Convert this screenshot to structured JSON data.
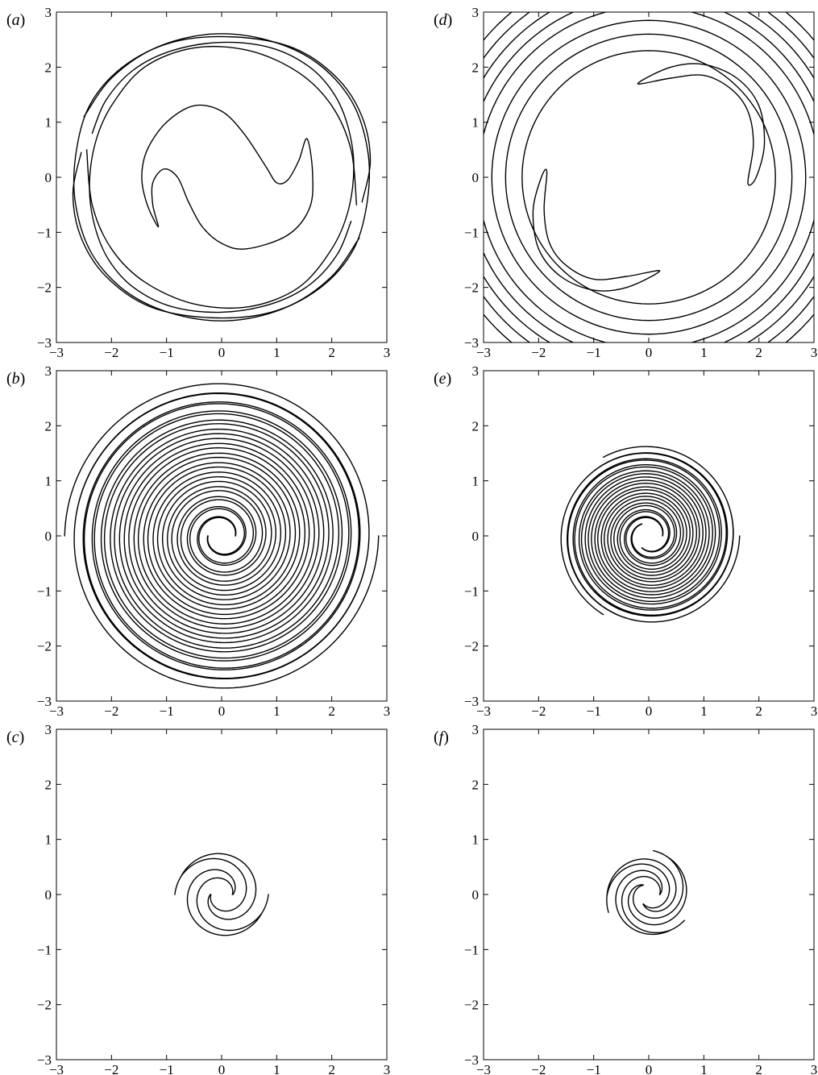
{
  "chart_data": [
    {
      "panel": "(a)",
      "type": "line",
      "title": "",
      "xlabel": "",
      "ylabel": "",
      "xlim": [
        -3,
        3
      ],
      "ylim": [
        -3,
        3
      ],
      "xticks": [
        -3,
        -2,
        -1,
        0,
        1,
        2,
        3
      ],
      "yticks": [
        -3,
        -2,
        -1,
        0,
        1,
        2,
        3
      ],
      "grid": false,
      "legend": "none",
      "description_series": [
        {
          "kind": "closed",
          "points": [
            [
              0.45,
              -1.3
            ],
            [
              1.2,
              -1.05
            ],
            [
              1.6,
              -0.55
            ],
            [
              1.65,
              0.1
            ],
            [
              1.55,
              0.7
            ],
            [
              1.4,
              0.3
            ],
            [
              1.2,
              -0.05
            ],
            [
              1.0,
              -0.1
            ],
            [
              0.8,
              0.2
            ],
            [
              0.4,
              0.8
            ],
            [
              0.0,
              1.2
            ],
            [
              -0.5,
              1.3
            ],
            [
              -1.0,
              1.0
            ],
            [
              -1.35,
              0.5
            ],
            [
              -1.45,
              0.0
            ],
            [
              -1.35,
              -0.5
            ],
            [
              -1.15,
              -0.9
            ],
            [
              -1.25,
              -0.5
            ],
            [
              -1.25,
              -0.1
            ],
            [
              -1.05,
              0.15
            ],
            [
              -0.8,
              0.0
            ],
            [
              -0.6,
              -0.45
            ],
            [
              -0.35,
              -0.9
            ],
            [
              0.0,
              -1.2
            ]
          ]
        },
        {
          "kind": "open",
          "points": [
            [
              -2.45,
              0.5
            ],
            [
              -2.35,
              -0.5
            ],
            [
              -2.0,
              -1.3
            ],
            [
              -1.4,
              -1.9
            ],
            [
              -0.5,
              -2.3
            ],
            [
              0.5,
              -2.35
            ],
            [
              1.4,
              -2.0
            ],
            [
              2.0,
              -1.3
            ],
            [
              2.3,
              -0.6
            ],
            [
              2.4,
              0.2
            ],
            [
              2.3,
              0.9
            ],
            [
              2.05,
              1.5
            ],
            [
              1.6,
              2.0
            ],
            [
              0.9,
              2.35
            ],
            [
              0.0,
              2.45
            ],
            [
              -0.9,
              2.3
            ],
            [
              -1.6,
              1.95
            ],
            [
              -2.1,
              1.4
            ],
            [
              -2.35,
              0.8
            ]
          ]
        },
        {
          "kind": "open",
          "points": [
            [
              2.45,
              -0.5
            ],
            [
              2.35,
              0.5
            ],
            [
              2.0,
              1.3
            ],
            [
              1.4,
              1.9
            ],
            [
              0.5,
              2.3
            ],
            [
              -0.5,
              2.35
            ],
            [
              -1.4,
              2.0
            ],
            [
              -2.0,
              1.3
            ],
            [
              -2.3,
              0.6
            ],
            [
              -2.4,
              -0.2
            ],
            [
              -2.3,
              -0.9
            ],
            [
              -2.05,
              -1.5
            ],
            [
              -1.6,
              -2.0
            ],
            [
              -0.9,
              -2.35
            ],
            [
              0.0,
              -2.45
            ],
            [
              0.9,
              -2.3
            ],
            [
              1.6,
              -1.95
            ],
            [
              2.1,
              -1.4
            ],
            [
              2.35,
              -0.8
            ]
          ]
        },
        {
          "kind": "open",
          "points": [
            [
              -2.55,
              0.45
            ],
            [
              -2.7,
              -0.3
            ],
            [
              -2.55,
              -1.1
            ],
            [
              -2.1,
              -1.8
            ],
            [
              -1.3,
              -2.35
            ],
            [
              -0.2,
              -2.55
            ],
            [
              0.9,
              -2.45
            ],
            [
              1.8,
              -2.0
            ],
            [
              2.4,
              -1.3
            ],
            [
              2.65,
              -0.4
            ],
            [
              2.65,
              0.5
            ],
            [
              2.35,
              1.4
            ],
            [
              1.7,
              2.1
            ],
            [
              0.8,
              2.5
            ],
            [
              -0.2,
              2.6
            ],
            [
              -1.2,
              2.35
            ],
            [
              -2.0,
              1.8
            ],
            [
              -2.5,
              1.1
            ]
          ]
        },
        {
          "kind": "open",
          "points": [
            [
              2.55,
              -0.45
            ],
            [
              2.7,
              0.3
            ],
            [
              2.55,
              1.1
            ],
            [
              2.1,
              1.8
            ],
            [
              1.3,
              2.35
            ],
            [
              0.2,
              2.55
            ],
            [
              -0.9,
              2.45
            ],
            [
              -1.8,
              2.0
            ],
            [
              -2.4,
              1.3
            ],
            [
              -2.65,
              0.4
            ],
            [
              -2.65,
              -0.5
            ],
            [
              -2.35,
              -1.4
            ],
            [
              -1.7,
              -2.1
            ],
            [
              -0.8,
              -2.5
            ],
            [
              0.2,
              -2.6
            ],
            [
              1.2,
              -2.35
            ],
            [
              2.0,
              -1.8
            ],
            [
              2.5,
              -1.1
            ]
          ]
        }
      ]
    },
    {
      "panel": "(b)",
      "type": "line",
      "title": "",
      "xlabel": "",
      "ylabel": "",
      "xlim": [
        -3,
        3
      ],
      "ylim": [
        -3,
        3
      ],
      "xticks": [
        -3,
        -2,
        -1,
        0,
        1,
        2,
        3
      ],
      "yticks": [
        -3,
        -2,
        -1,
        0,
        1,
        2,
        3
      ],
      "grid": false,
      "legend": "none",
      "spiral": {
        "arms": 2,
        "r_inner": 0.25,
        "r_outer": 2.85,
        "turns": 7.5,
        "rotation": 1
      }
    },
    {
      "panel": "(c)",
      "type": "line",
      "title": "",
      "xlabel": "",
      "ylabel": "",
      "xlim": [
        -3,
        3
      ],
      "ylim": [
        -3,
        3
      ],
      "xticks": [
        -3,
        -2,
        -1,
        0,
        1,
        2,
        3
      ],
      "yticks": [
        -3,
        -2,
        -1,
        0,
        1,
        2,
        3
      ],
      "grid": false,
      "legend": "none",
      "spiral": {
        "arms": 2,
        "r_inner": 0.2,
        "r_outer": 0.85,
        "turns": 1.0,
        "rotation": 1
      }
    },
    {
      "panel": "(d)",
      "type": "line",
      "title": "",
      "xlabel": "",
      "ylabel": "",
      "xlim": [
        -3,
        3
      ],
      "ylim": [
        -3,
        3
      ],
      "xticks": [
        -3,
        -2,
        -1,
        0,
        1,
        2,
        3
      ],
      "yticks": [
        -3,
        -2,
        -1,
        0,
        1,
        2,
        3
      ],
      "grid": false,
      "legend": "none",
      "description_series": [
        {
          "kind": "closed",
          "points": [
            [
              1.8,
              -0.1
            ],
            [
              1.9,
              0.6
            ],
            [
              1.8,
              1.2
            ],
            [
              1.5,
              1.6
            ],
            [
              1.0,
              1.85
            ],
            [
              0.4,
              1.8
            ],
            [
              -0.2,
              1.7
            ],
            [
              0.4,
              2.0
            ],
            [
              1.0,
              2.05
            ],
            [
              1.6,
              1.8
            ],
            [
              2.0,
              1.3
            ],
            [
              2.1,
              0.6
            ],
            [
              1.95,
              0.0
            ]
          ]
        },
        {
          "kind": "closed",
          "points": [
            [
              -1.85,
              0.1
            ],
            [
              -1.9,
              -0.6
            ],
            [
              -1.8,
              -1.2
            ],
            [
              -1.5,
              -1.6
            ],
            [
              -1.0,
              -1.85
            ],
            [
              -0.4,
              -1.8
            ],
            [
              0.2,
              -1.7
            ],
            [
              -0.4,
              -2.0
            ],
            [
              -1.0,
              -2.05
            ],
            [
              -1.6,
              -1.8
            ],
            [
              -2.0,
              -1.3
            ],
            [
              -2.1,
              -0.6
            ],
            [
              -1.95,
              0.0
            ]
          ]
        }
      ],
      "rings": [
        2.3,
        2.6,
        2.85,
        3.1,
        3.3,
        3.5,
        3.7,
        3.9
      ]
    },
    {
      "panel": "(e)",
      "type": "line",
      "title": "",
      "xlabel": "",
      "ylabel": "",
      "xlim": [
        -3,
        3
      ],
      "ylim": [
        -3,
        3
      ],
      "xticks": [
        -3,
        -2,
        -1,
        0,
        1,
        2,
        3
      ],
      "yticks": [
        -3,
        -2,
        -1,
        0,
        1,
        2,
        3
      ],
      "grid": false,
      "legend": "none",
      "spiral": {
        "arms": 3,
        "r_inner": 0.25,
        "r_outer": 1.65,
        "turns": 4.0,
        "rotation": 1
      }
    },
    {
      "panel": "(f)",
      "type": "line",
      "title": "",
      "xlabel": "",
      "ylabel": "",
      "xlim": [
        -3,
        3
      ],
      "ylim": [
        -3,
        3
      ],
      "xticks": [
        -3,
        -2,
        -1,
        0,
        1,
        2,
        3
      ],
      "yticks": [
        -3,
        -2,
        -1,
        0,
        1,
        2,
        3
      ],
      "grid": false,
      "legend": "none",
      "spiral": {
        "arms": 3,
        "r_inner": 0.2,
        "r_outer": 0.8,
        "turns": 0.9,
        "rotation": 1
      }
    }
  ]
}
